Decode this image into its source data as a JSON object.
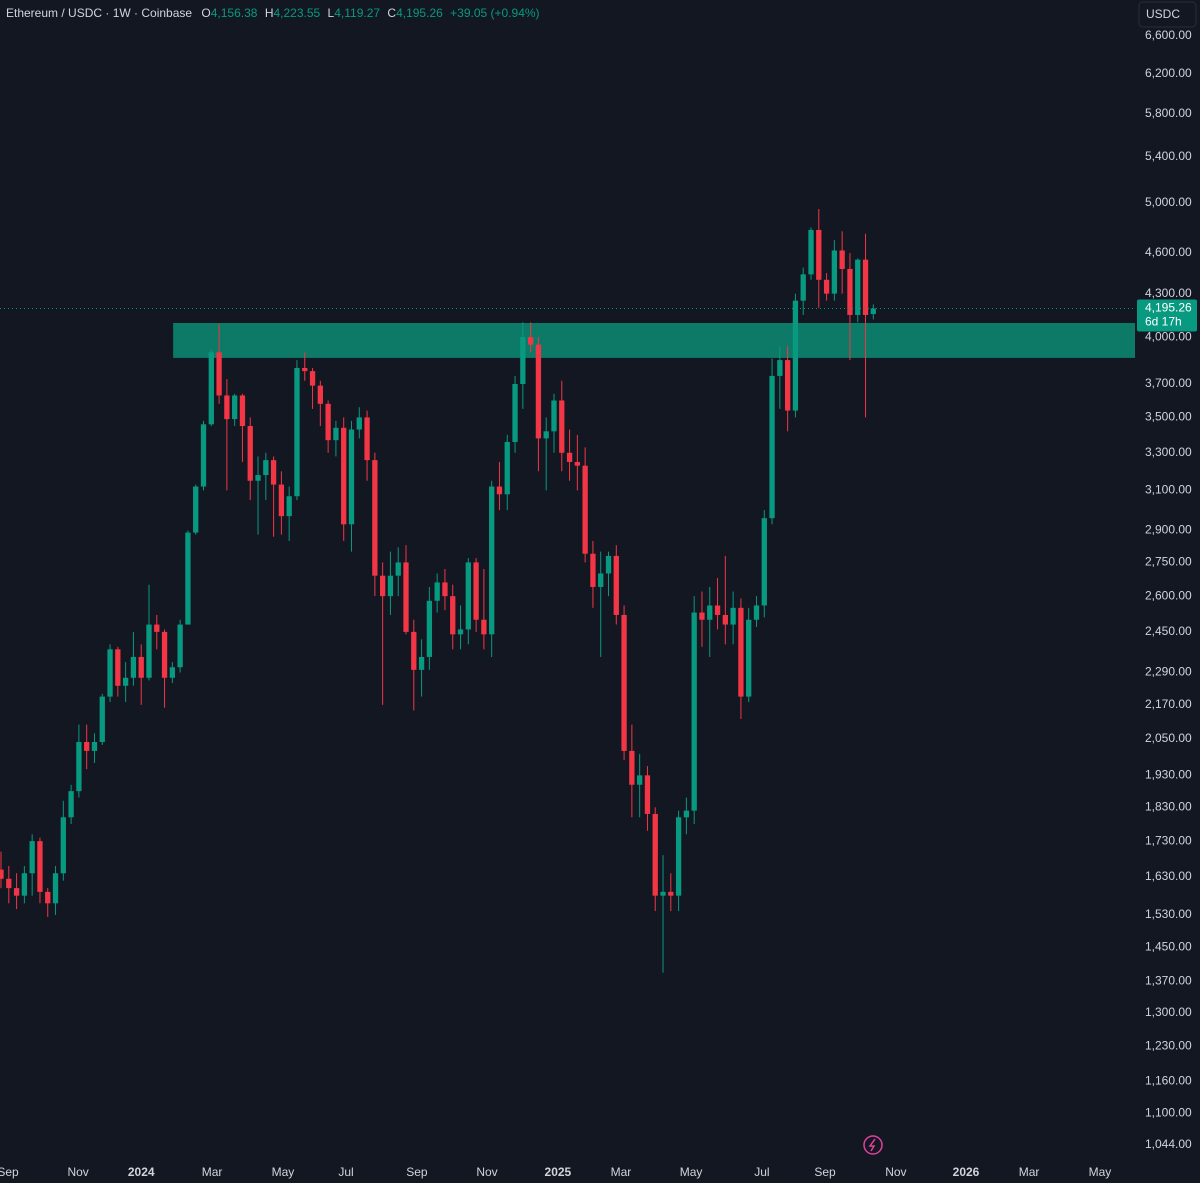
{
  "chart_data": {
    "type": "candlestick",
    "header": {
      "symbol": "Ethereum / USDC · 1W · Coinbase",
      "ohlc": [
        {
          "key": "O",
          "value": "4,156.38"
        },
        {
          "key": "H",
          "value": "4,223.55"
        },
        {
          "key": "L",
          "value": "4,119.27"
        },
        {
          "key": "C",
          "value": "4,195.26"
        }
      ],
      "change": "+39.05 (+0.94%)"
    },
    "currency": "USDC",
    "last_price_label": "4,195.26",
    "countdown": "6d 17h",
    "up_color": "#089981",
    "down_color": "#f23645",
    "log_scale": true,
    "grid": false,
    "open": [
      1650,
      1625,
      1600,
      1580,
      1640,
      1730,
      1590,
      1560,
      1640,
      1800,
      1880,
      2040,
      2010,
      2040,
      2200,
      2380,
      2240,
      2270,
      2350,
      2270,
      2480,
      2450,
      2270,
      2310,
      2480,
      2890,
      3120,
      3460,
      3900,
      3630,
      3490,
      3630,
      3450,
      3150,
      3180,
      3260,
      3130,
      2970,
      3070,
      3800,
      3780,
      3690,
      3580,
      3370,
      3440,
      2930,
      3430,
      3500,
      3260,
      2690,
      2600,
      2690,
      2750,
      2450,
      2300,
      2350,
      2580,
      2660,
      2600,
      2440,
      2460,
      2750,
      2500,
      2440,
      3120,
      3080,
      3360,
      3700,
      4000,
      3950,
      3380,
      3420,
      3600,
      3300,
      3250,
      3230,
      2790,
      2640,
      2700,
      2780,
      2520,
      2010,
      1900,
      1930,
      1810,
      1580,
      1590,
      1580,
      1800,
      1820,
      2530,
      2500,
      2560,
      2520,
      2480,
      2550,
      2200,
      2500,
      2560,
      2960,
      3750,
      3850,
      3540,
      4250,
      4440,
      4780,
      4400,
      4300,
      4620,
      4480,
      4150,
      4550,
      4156.38
    ],
    "high": [
      1700,
      1660,
      1640,
      1660,
      1750,
      1740,
      1600,
      1660,
      1850,
      1900,
      2100,
      2100,
      2070,
      2210,
      2400,
      2390,
      2330,
      2450,
      2400,
      2650,
      2520,
      2460,
      2330,
      2500,
      2900,
      3130,
      3480,
      3920,
      4090,
      3730,
      3640,
      3640,
      3500,
      3280,
      3300,
      3280,
      3200,
      3120,
      3850,
      3900,
      3800,
      3720,
      3600,
      3480,
      3500,
      3480,
      3560,
      3540,
      3300,
      2750,
      2800,
      2820,
      2830,
      2500,
      2420,
      2640,
      2700,
      2720,
      2650,
      2560,
      2770,
      2770,
      2720,
      3150,
      3250,
      3400,
      3750,
      4100,
      4100,
      4000,
      3500,
      3640,
      3720,
      3430,
      3400,
      3330,
      2850,
      2800,
      2800,
      2830,
      2560,
      2100,
      2000,
      1960,
      1830,
      1690,
      1640,
      1820,
      1860,
      2600,
      2620,
      2640,
      2680,
      2780,
      2620,
      2590,
      2550,
      2600,
      3000,
      3860,
      3940,
      3940,
      4300,
      4490,
      4800,
      4950,
      4450,
      4700,
      4770,
      4600,
      4560,
      4750,
      4223.55
    ],
    "low": [
      1600,
      1560,
      1545,
      1560,
      1580,
      1560,
      1525,
      1530,
      1620,
      1780,
      1860,
      1950,
      1970,
      2030,
      2180,
      2200,
      2180,
      2240,
      2170,
      2260,
      2380,
      2160,
      2250,
      2290,
      2480,
      2880,
      3100,
      3450,
      3580,
      3100,
      3450,
      3250,
      3050,
      2880,
      3050,
      2870,
      2880,
      2850,
      3050,
      3720,
      3550,
      3450,
      3300,
      3280,
      2850,
      2800,
      3380,
      3150,
      2600,
      2170,
      2520,
      2600,
      2440,
      2150,
      2200,
      2300,
      2530,
      2540,
      2380,
      2380,
      2400,
      2450,
      2380,
      2350,
      3000,
      3000,
      3300,
      3550,
      3900,
      3200,
      3100,
      3300,
      3200,
      3150,
      3100,
      2750,
      2550,
      2350,
      2600,
      2480,
      1980,
      1800,
      1800,
      1760,
      1540,
      1390,
      1540,
      1540,
      1750,
      1780,
      2390,
      2350,
      2460,
      2400,
      2400,
      2120,
      2180,
      2470,
      2510,
      2930,
      3550,
      3420,
      3500,
      4150,
      4400,
      4200,
      4250,
      4250,
      4300,
      3850,
      4100,
      3500,
      4119.27
    ],
    "close": [
      1625,
      1600,
      1580,
      1640,
      1730,
      1590,
      1560,
      1640,
      1800,
      1880,
      2040,
      2010,
      2040,
      2200,
      2380,
      2240,
      2270,
      2350,
      2270,
      2480,
      2450,
      2270,
      2310,
      2480,
      2890,
      3120,
      3460,
      3900,
      3630,
      3490,
      3630,
      3450,
      3150,
      3180,
      3260,
      3130,
      2970,
      3070,
      3800,
      3780,
      3690,
      3580,
      3370,
      3440,
      2930,
      3430,
      3500,
      3260,
      2690,
      2600,
      2690,
      2750,
      2450,
      2300,
      2350,
      2580,
      2660,
      2600,
      2440,
      2460,
      2750,
      2500,
      2440,
      3120,
      3080,
      3360,
      3700,
      4000,
      3950,
      3380,
      3420,
      3600,
      3300,
      3250,
      3230,
      2790,
      2640,
      2700,
      2780,
      2520,
      2010,
      1900,
      1930,
      1810,
      1580,
      1590,
      1580,
      1800,
      1820,
      2530,
      2500,
      2560,
      2520,
      2480,
      2550,
      2200,
      2500,
      2560,
      2960,
      3750,
      3850,
      3540,
      4250,
      4440,
      4780,
      4400,
      4300,
      4620,
      4480,
      4150,
      4550,
      4150,
      4195.26
    ],
    "zone": {
      "low": 3864,
      "high": 4095,
      "x_start": 22.1,
      "color": "#0d7a68"
    },
    "xlim": [
      -0.13,
      145.6
    ],
    "xticks": [
      {
        "value": 0.9,
        "label": "Sep"
      },
      {
        "value": 9.9,
        "label": "Nov"
      },
      {
        "value": 18.0,
        "label": "2024"
      },
      {
        "value": 27.1,
        "label": "Mar"
      },
      {
        "value": 36.2,
        "label": "May"
      },
      {
        "value": 44.3,
        "label": "Jul"
      },
      {
        "value": 53.4,
        "label": "Sep"
      },
      {
        "value": 62.4,
        "label": "Nov"
      },
      {
        "value": 71.5,
        "label": "2025"
      },
      {
        "value": 79.6,
        "label": "Mar"
      },
      {
        "value": 88.6,
        "label": "May"
      },
      {
        "value": 97.7,
        "label": "Jul"
      },
      {
        "value": 105.8,
        "label": "Sep"
      },
      {
        "value": 114.9,
        "label": "Nov"
      },
      {
        "value": 123.9,
        "label": "2026"
      },
      {
        "value": 132.0,
        "label": "Mar"
      },
      {
        "value": 141.1,
        "label": "May"
      }
    ],
    "ylim": [
      1018,
      7007
    ],
    "yticks": [
      {
        "value": 6600,
        "label": "6,600.00"
      },
      {
        "value": 6200,
        "label": "6,200.00"
      },
      {
        "value": 5800,
        "label": "5,800.00"
      },
      {
        "value": 5400,
        "label": "5,400.00"
      },
      {
        "value": 5000,
        "label": "5,000.00"
      },
      {
        "value": 4600,
        "label": "4,600.00"
      },
      {
        "value": 4300,
        "label": "4,300.00"
      },
      {
        "value": 4000,
        "label": "4,000.00"
      },
      {
        "value": 3700,
        "label": "3,700.00"
      },
      {
        "value": 3500,
        "label": "3,500.00"
      },
      {
        "value": 3300,
        "label": "3,300.00"
      },
      {
        "value": 3100,
        "label": "3,100.00"
      },
      {
        "value": 2900,
        "label": "2,900.00"
      },
      {
        "value": 2750,
        "label": "2,750.00"
      },
      {
        "value": 2600,
        "label": "2,600.00"
      },
      {
        "value": 2450,
        "label": "2,450.00"
      },
      {
        "value": 2290,
        "label": "2,290.00"
      },
      {
        "value": 2170,
        "label": "2,170.00"
      },
      {
        "value": 2050,
        "label": "2,050.00"
      },
      {
        "value": 1930,
        "label": "1,930.00"
      },
      {
        "value": 1830,
        "label": "1,830.00"
      },
      {
        "value": 1730,
        "label": "1,730.00"
      },
      {
        "value": 1630,
        "label": "1,630.00"
      },
      {
        "value": 1530,
        "label": "1,530.00"
      },
      {
        "value": 1450,
        "label": "1,450.00"
      },
      {
        "value": 1370,
        "label": "1,370.00"
      },
      {
        "value": 1300,
        "label": "1,300.00"
      },
      {
        "value": 1230,
        "label": "1,230.00"
      },
      {
        "value": 1160,
        "label": "1,160.00"
      },
      {
        "value": 1100,
        "label": "1,100.00"
      },
      {
        "value": 1044,
        "label": "1,044.00"
      }
    ]
  }
}
